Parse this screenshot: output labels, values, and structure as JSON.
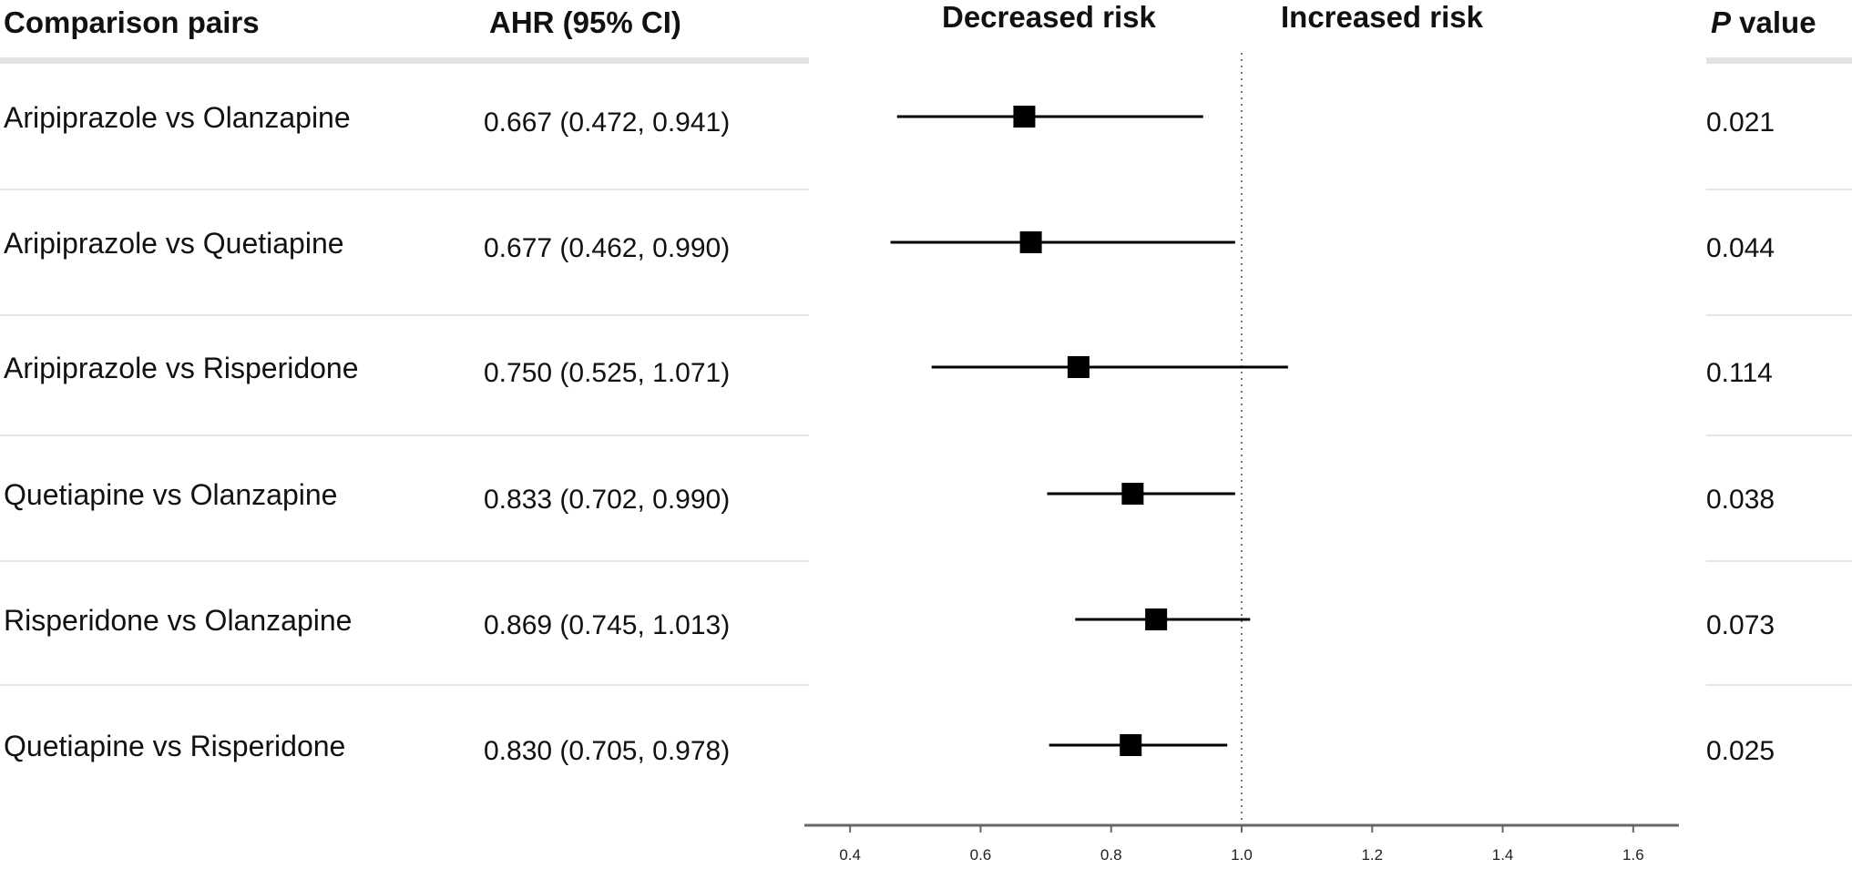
{
  "chart_data": {
    "type": "forest",
    "headers": {
      "pairs": "Comparison pairs",
      "ahr": "AHR (95% CI)",
      "decreased": "Decreased risk",
      "increased": "Increased risk",
      "p_italic": "P",
      "p_rest": " value"
    },
    "rows": [
      {
        "label": "Aripiprazole vs Olanzapine",
        "ahr_text": "0.667 (0.472, 0.941)",
        "estimate": 0.667,
        "lower": 0.472,
        "upper": 0.941,
        "p": "0.021"
      },
      {
        "label": "Aripiprazole vs Quetiapine",
        "ahr_text": "0.677 (0.462, 0.990)",
        "estimate": 0.677,
        "lower": 0.462,
        "upper": 0.99,
        "p": "0.044"
      },
      {
        "label": "Aripiprazole vs Risperidone",
        "ahr_text": "0.750 (0.525, 1.071)",
        "estimate": 0.75,
        "lower": 0.525,
        "upper": 1.071,
        "p": "0.114"
      },
      {
        "label": "Quetiapine vs Olanzapine",
        "ahr_text": "0.833 (0.702, 0.990)",
        "estimate": 0.833,
        "lower": 0.702,
        "upper": 0.99,
        "p": "0.038"
      },
      {
        "label": "Risperidone vs Olanzapine",
        "ahr_text": "0.869 (0.745, 1.013)",
        "estimate": 0.869,
        "lower": 0.745,
        "upper": 1.013,
        "p": "0.073"
      },
      {
        "label": "Quetiapine vs Risperidone",
        "ahr_text": "0.830 (0.705, 0.978)",
        "estimate": 0.83,
        "lower": 0.705,
        "upper": 0.978,
        "p": "0.025"
      }
    ],
    "x_ticks": [
      "0.4",
      "0.6",
      "0.8",
      "1.0",
      "1.2",
      "1.4",
      "1.6"
    ],
    "xlim": [
      0.33,
      1.67
    ],
    "reference_value": 1.0,
    "colors": {
      "marker": "#000000",
      "separator": "#e6e6e6",
      "axis": "#666666",
      "reference": "#777777"
    }
  }
}
